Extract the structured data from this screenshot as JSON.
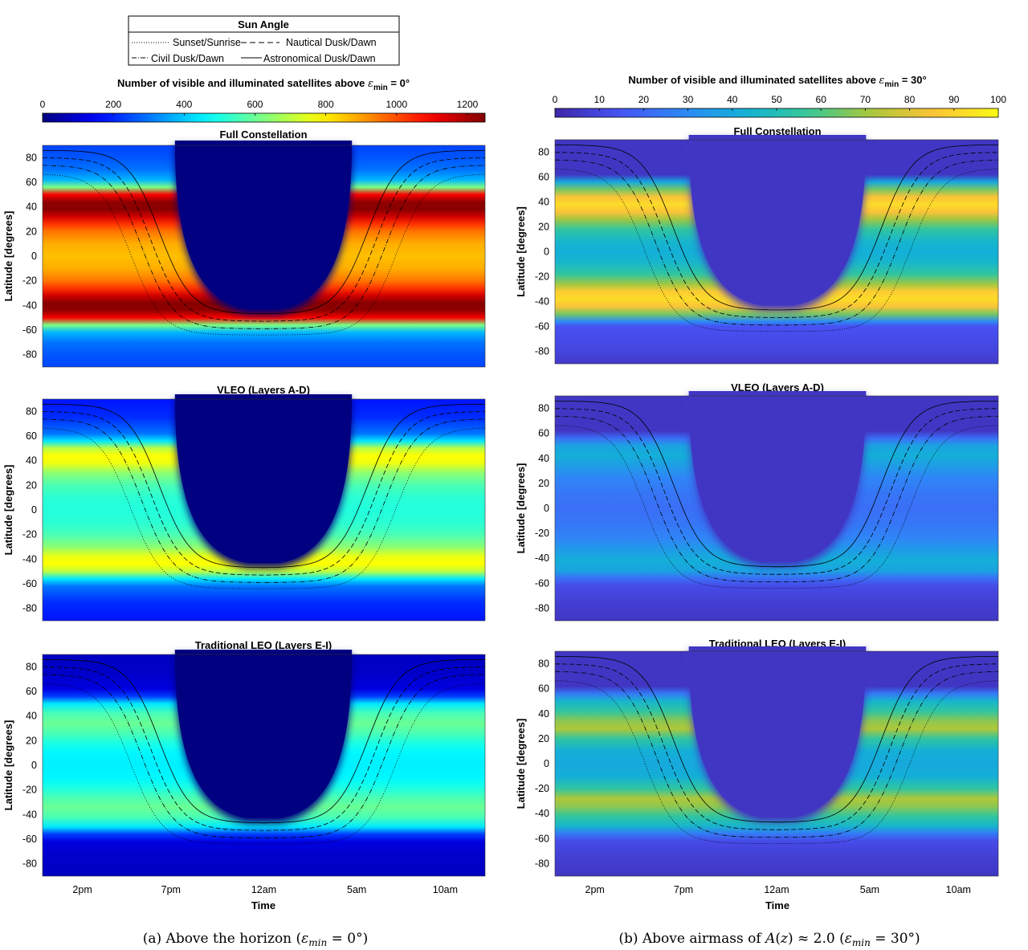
{
  "legend": {
    "title": "Sun Angle",
    "entries": [
      "Sunset/Sunrise",
      "Nautical Dusk/Dawn",
      "Civil Dusk/Dawn",
      "Astronomical Dusk/Dawn"
    ]
  },
  "panels": [
    {
      "colorbar": {
        "title_prefix": "Number of visible and illuminated satellites above ",
        "title_sym": "ε",
        "title_sub": "min",
        "title_suffix": " = 0°",
        "ticks": [
          "0",
          "200",
          "400",
          "600",
          "800",
          "1000",
          "1200"
        ],
        "range": [
          0,
          1250
        ],
        "colormap": "jet"
      },
      "caption": "(a) Above the horizon (εmin = 0°)"
    },
    {
      "colorbar": {
        "title_prefix": "Number of visible and illuminated satellites above ",
        "title_sym": "ε",
        "title_sub": "min",
        "title_suffix": " = 30°",
        "ticks": [
          "0",
          "10",
          "20",
          "30",
          "40",
          "50",
          "60",
          "70",
          "80",
          "90",
          "100"
        ],
        "range": [
          0,
          100
        ],
        "colormap": "parula"
      },
      "caption": "(b) Above airmass of A(z) ≈ 2.0 (εmin = 30°)"
    }
  ],
  "subplot_titles": [
    "Full Constellation",
    "VLEO (Layers A-D)",
    "Traditional LEO (Layers E-I)"
  ],
  "axes": {
    "ylabel": "Latitude [degrees]",
    "xlabel": "Time",
    "yticks": [
      "80",
      "60",
      "40",
      "20",
      "0",
      "-20",
      "-40",
      "-60",
      "-80"
    ],
    "xticks": [
      "2pm",
      "7pm",
      "12am",
      "5am",
      "10am"
    ]
  },
  "chart_data": [
    {
      "type": "heatmap",
      "title": "Full Constellation",
      "panel": "a",
      "x_ticks": [
        "2pm",
        "7pm",
        "12am",
        "5am",
        "10am"
      ],
      "ylim": [
        -90,
        90
      ],
      "color_range": [
        0,
        1250
      ],
      "latitude_profile": [
        [
          -90,
          240
        ],
        [
          -80,
          260
        ],
        [
          -70,
          300
        ],
        [
          -62,
          380
        ],
        [
          -56,
          620
        ],
        [
          -50,
          1100
        ],
        [
          -44,
          1230
        ],
        [
          -38,
          1240
        ],
        [
          -32,
          1150
        ],
        [
          -26,
          1030
        ],
        [
          -20,
          950
        ],
        [
          -10,
          880
        ],
        [
          0,
          860
        ],
        [
          10,
          880
        ],
        [
          20,
          950
        ],
        [
          26,
          1030
        ],
        [
          32,
          1150
        ],
        [
          38,
          1240
        ],
        [
          44,
          1230
        ],
        [
          50,
          1100
        ],
        [
          56,
          620
        ],
        [
          62,
          380
        ],
        [
          70,
          300
        ],
        [
          80,
          260
        ],
        [
          90,
          240
        ]
      ],
      "dark_region_value": 0
    },
    {
      "type": "heatmap",
      "title": "VLEO (Layers A-D)",
      "panel": "a",
      "ylim": [
        -90,
        90
      ],
      "color_range": [
        0,
        1250
      ],
      "latitude_profile": [
        [
          -90,
          180
        ],
        [
          -75,
          210
        ],
        [
          -62,
          300
        ],
        [
          -56,
          440
        ],
        [
          -50,
          700
        ],
        [
          -44,
          780
        ],
        [
          -38,
          760
        ],
        [
          -30,
          640
        ],
        [
          -20,
          560
        ],
        [
          -10,
          520
        ],
        [
          0,
          510
        ],
        [
          10,
          520
        ],
        [
          20,
          560
        ],
        [
          30,
          640
        ],
        [
          38,
          760
        ],
        [
          44,
          780
        ],
        [
          50,
          700
        ],
        [
          56,
          440
        ],
        [
          62,
          300
        ],
        [
          75,
          210
        ],
        [
          90,
          180
        ]
      ],
      "dark_region_value": 0
    },
    {
      "type": "heatmap",
      "title": "Traditional LEO (Layers E-I)",
      "panel": "a",
      "ylim": [
        -90,
        90
      ],
      "color_range": [
        0,
        1250
      ],
      "latitude_profile": [
        [
          -90,
          80
        ],
        [
          -75,
          90
        ],
        [
          -62,
          120
        ],
        [
          -56,
          230
        ],
        [
          -50,
          440
        ],
        [
          -42,
          560
        ],
        [
          -34,
          600
        ],
        [
          -26,
          560
        ],
        [
          -18,
          500
        ],
        [
          -10,
          460
        ],
        [
          0,
          450
        ],
        [
          10,
          460
        ],
        [
          18,
          500
        ],
        [
          26,
          560
        ],
        [
          34,
          600
        ],
        [
          42,
          560
        ],
        [
          50,
          440
        ],
        [
          56,
          230
        ],
        [
          62,
          120
        ],
        [
          75,
          90
        ],
        [
          90,
          80
        ]
      ],
      "dark_region_value": 0
    },
    {
      "type": "heatmap",
      "title": "Full Constellation",
      "panel": "b",
      "ylim": [
        -90,
        90
      ],
      "color_range": [
        0,
        100
      ],
      "latitude_profile": [
        [
          -90,
          6
        ],
        [
          -80,
          10
        ],
        [
          -70,
          12
        ],
        [
          -60,
          14
        ],
        [
          -56,
          30
        ],
        [
          -50,
          65
        ],
        [
          -44,
          85
        ],
        [
          -38,
          92
        ],
        [
          -32,
          88
        ],
        [
          -26,
          70
        ],
        [
          -18,
          55
        ],
        [
          -8,
          45
        ],
        [
          0,
          42
        ],
        [
          8,
          45
        ],
        [
          18,
          55
        ],
        [
          26,
          70
        ],
        [
          32,
          85
        ],
        [
          38,
          92
        ],
        [
          44,
          85
        ],
        [
          50,
          65
        ],
        [
          56,
          40
        ],
        [
          62,
          5
        ],
        [
          90,
          5
        ]
      ],
      "dark_region_value": 5
    },
    {
      "type": "heatmap",
      "title": "VLEO (Layers A-D)",
      "panel": "b",
      "ylim": [
        -90,
        90
      ],
      "color_range": [
        0,
        100
      ],
      "latitude_profile": [
        [
          -90,
          5
        ],
        [
          -75,
          8
        ],
        [
          -62,
          12
        ],
        [
          -56,
          22
        ],
        [
          -50,
          38
        ],
        [
          -42,
          42
        ],
        [
          -34,
          36
        ],
        [
          -24,
          28
        ],
        [
          -12,
          24
        ],
        [
          0,
          22
        ],
        [
          12,
          24
        ],
        [
          24,
          28
        ],
        [
          34,
          36
        ],
        [
          42,
          42
        ],
        [
          50,
          38
        ],
        [
          56,
          22
        ],
        [
          62,
          5
        ],
        [
          90,
          5
        ]
      ],
      "dark_region_value": 5
    },
    {
      "type": "heatmap",
      "title": "Traditional LEO (Layers E-I)",
      "panel": "b",
      "ylim": [
        -90,
        90
      ],
      "color_range": [
        0,
        100
      ],
      "latitude_profile": [
        [
          -90,
          5
        ],
        [
          -75,
          8
        ],
        [
          -62,
          12
        ],
        [
          -56,
          25
        ],
        [
          -50,
          45
        ],
        [
          -42,
          55
        ],
        [
          -34,
          68
        ],
        [
          -28,
          72
        ],
        [
          -20,
          55
        ],
        [
          -10,
          42
        ],
        [
          0,
          40
        ],
        [
          10,
          42
        ],
        [
          20,
          55
        ],
        [
          28,
          72
        ],
        [
          34,
          68
        ],
        [
          42,
          55
        ],
        [
          50,
          45
        ],
        [
          56,
          25
        ],
        [
          62,
          5
        ],
        [
          90,
          5
        ]
      ],
      "dark_region_value": 5
    }
  ]
}
